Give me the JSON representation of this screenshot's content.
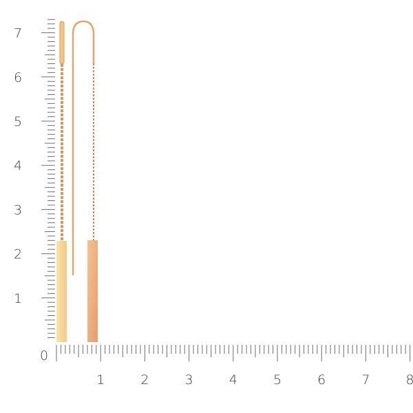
{
  "ruler": {
    "unit_labels_y": [
      "1",
      "2",
      "3",
      "4",
      "5",
      "6",
      "7"
    ],
    "unit_labels_x": [
      "1",
      "2",
      "3",
      "4",
      "5",
      "6",
      "7",
      "8"
    ],
    "origin_label": "0",
    "minor_divisions_per_unit": 10,
    "tick_color": "#6e6e6e"
  },
  "product": {
    "items": [
      {
        "name": "threader-earring-front",
        "bar_color": "#f8d993",
        "chain_color": "#d99560"
      },
      {
        "name": "threader-earring-side",
        "bar_color": "#f2b583",
        "chain_color": "#d38a55"
      }
    ]
  }
}
